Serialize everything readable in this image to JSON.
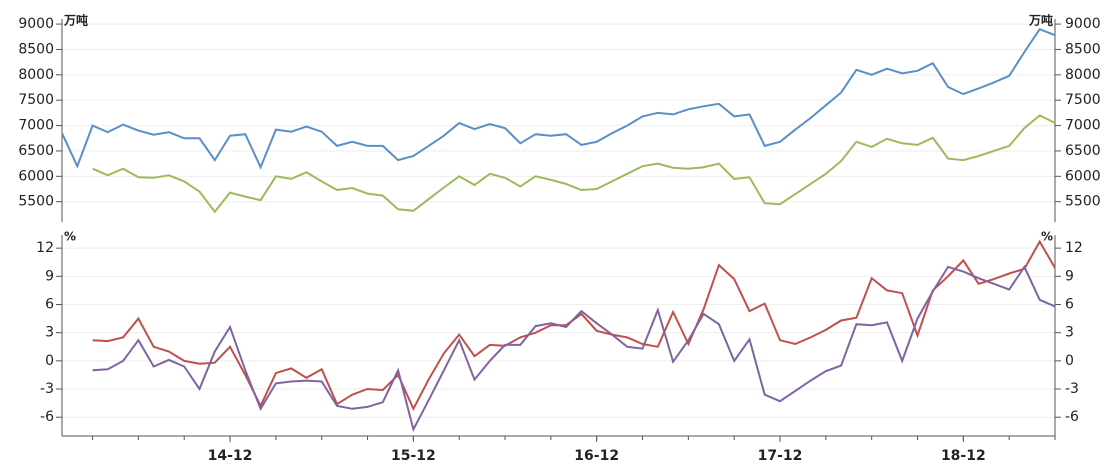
{
  "chart_data": [
    {
      "type": "line",
      "y_unit": "万吨",
      "ylim": [
        5100,
        9100
      ],
      "yticks": [
        5500,
        6000,
        6500,
        7000,
        7500,
        8000,
        8500,
        9000
      ],
      "grid": true,
      "series": [
        {
          "color": "#5b8ec8",
          "values": [
            6850,
            6200,
            7000,
            6870,
            7020,
            6900,
            6820,
            6870,
            6750,
            6750,
            6320,
            6800,
            6830,
            6180,
            6920,
            6880,
            6980,
            6880,
            6600,
            6680,
            6600,
            6600,
            6320,
            6400,
            6600,
            6800,
            7050,
            6930,
            7030,
            6950,
            6650,
            6830,
            6800,
            6830,
            6620,
            6680,
            6850,
            7000,
            7180,
            7250,
            7220,
            7320,
            7380,
            7430,
            7180,
            7220,
            6600,
            6680,
            6920,
            7150,
            7400,
            7650,
            8100,
            8000,
            8120,
            8030,
            8080,
            8230,
            7760,
            7620,
            7730,
            7850,
            7980,
            8450,
            8900,
            8780
          ]
        },
        {
          "color": "#9bbb59",
          "values": [
            null,
            null,
            6150,
            6020,
            6150,
            5980,
            5970,
            6020,
            5900,
            5700,
            5300,
            5680,
            5600,
            5530,
            6000,
            5950,
            6080,
            5900,
            5730,
            5770,
            5660,
            5620,
            5350,
            5320,
            5550,
            5780,
            6000,
            5830,
            6050,
            5970,
            5800,
            6000,
            5930,
            5850,
            5730,
            5750,
            5900,
            6050,
            6200,
            6250,
            6170,
            6150,
            6180,
            6250,
            5950,
            5980,
            5470,
            5450,
            5650,
            5850,
            6050,
            6300,
            6680,
            6580,
            6740,
            6650,
            6620,
            6760,
            6350,
            6320,
            6400,
            6500,
            6600,
            6950,
            7200,
            7050
          ]
        }
      ]
    },
    {
      "type": "line",
      "y_unit": "%",
      "ylim": [
        -8,
        13.4
      ],
      "yticks": [
        -6,
        -3,
        0,
        3,
        6,
        9,
        12
      ],
      "grid": true,
      "categories": [
        null,
        null,
        null,
        null,
        null,
        null,
        null,
        null,
        null,
        null,
        null,
        "14-12",
        null,
        null,
        null,
        null,
        null,
        null,
        null,
        null,
        null,
        null,
        null,
        "15-12",
        null,
        null,
        null,
        null,
        null,
        null,
        null,
        null,
        null,
        null,
        null,
        "16-12",
        null,
        null,
        null,
        null,
        null,
        null,
        null,
        null,
        null,
        null,
        null,
        "17-12",
        null,
        null,
        null,
        null,
        null,
        null,
        null,
        null,
        null,
        null,
        null,
        "18-12",
        null,
        null,
        null,
        null,
        null,
        null
      ],
      "series": [
        {
          "color": "#c0504d",
          "values": [
            null,
            null,
            2.2,
            2.1,
            2.5,
            4.5,
            1.5,
            1.0,
            0.0,
            -0.3,
            -0.2,
            1.5,
            -1.5,
            -4.8,
            -1.3,
            -0.8,
            -1.8,
            -0.9,
            -4.6,
            -3.6,
            -3.0,
            -3.1,
            -1.5,
            -5.1,
            -2.0,
            0.8,
            2.8,
            0.5,
            1.7,
            1.6,
            2.5,
            3.0,
            3.8,
            3.8,
            5.0,
            3.2,
            2.8,
            2.5,
            1.8,
            1.5,
            5.2,
            1.8,
            5.5,
            10.2,
            8.7,
            5.3,
            6.1,
            2.2,
            1.8,
            2.5,
            3.3,
            4.3,
            4.6,
            8.8,
            7.5,
            7.2,
            2.7,
            7.5,
            9.0,
            10.7,
            8.2,
            8.7,
            9.3,
            9.8,
            12.7,
            9.9
          ]
        },
        {
          "color": "#8064a2",
          "values": [
            null,
            null,
            -1.0,
            -0.9,
            0.0,
            2.2,
            -0.6,
            0.1,
            -0.6,
            -3.0,
            1.0,
            3.6,
            -1.0,
            -5.1,
            -2.4,
            -2.2,
            -2.1,
            -2.2,
            -4.8,
            -5.1,
            -4.9,
            -4.4,
            -1.0,
            -7.3,
            -4.2,
            -1.0,
            2.2,
            -2.0,
            0.0,
            1.7,
            1.7,
            3.7,
            4.0,
            3.6,
            5.3,
            4.0,
            2.8,
            1.5,
            1.3,
            5.4,
            -0.1,
            2.2,
            5.0,
            3.9,
            0.0,
            2.3,
            -3.6,
            -4.3,
            -3.2,
            -2.1,
            -1.1,
            -0.5,
            3.9,
            3.8,
            4.1,
            0.0,
            4.5,
            7.4,
            10.0,
            9.5,
            8.8,
            8.2,
            7.6,
            10.0,
            6.5,
            5.8
          ]
        }
      ]
    }
  ]
}
